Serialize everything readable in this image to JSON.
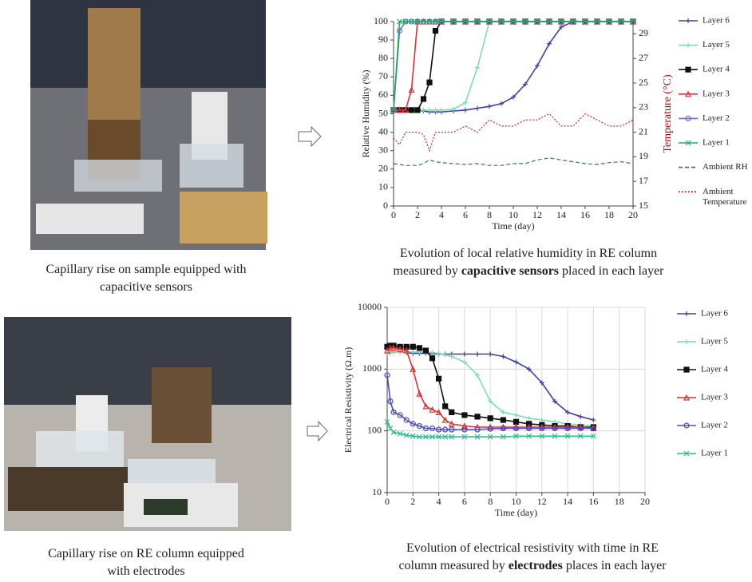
{
  "chart_data": [
    {
      "type": "line",
      "xlabel": "Time (day)",
      "ylabel": "Relative Humidity (%)",
      "y2label": "Temperature (°C)",
      "y2label_color": "#c00000",
      "x": [
        0,
        0.5,
        1,
        1.5,
        2,
        2.5,
        3,
        3.5,
        4,
        5,
        6,
        7,
        8,
        9,
        10,
        11,
        12,
        13,
        14,
        15,
        16,
        17,
        18,
        19,
        20
      ],
      "xlim": [
        0,
        20
      ],
      "xticks": [
        0,
        2,
        4,
        6,
        8,
        10,
        12,
        14,
        16,
        18,
        20
      ],
      "ylim": [
        0,
        100
      ],
      "yticks": [
        0,
        10,
        20,
        30,
        40,
        50,
        60,
        70,
        80,
        90,
        100
      ],
      "y2lim": [
        15,
        30
      ],
      "y2ticks": [
        15,
        17,
        19,
        21,
        23,
        25,
        27,
        29
      ],
      "grid": false,
      "legend": "right",
      "series": [
        {
          "name": "Layer 6",
          "color": "#3f3fa8",
          "marker": "plus",
          "line_style": "solid",
          "values": [
            52,
            52,
            52,
            52,
            52,
            51.5,
            51,
            51,
            51,
            51.5,
            52,
            53,
            54,
            55.5,
            59,
            66,
            76,
            88,
            97,
            100,
            100,
            100,
            100,
            100,
            100
          ]
        },
        {
          "name": "Layer 5",
          "color": "#7fdcb0",
          "marker": "plus",
          "line_style": "solid",
          "values": [
            52,
            52,
            52,
            52,
            52,
            52,
            52,
            52,
            52,
            52.5,
            56,
            75,
            100,
            100,
            100,
            100,
            100,
            100,
            100,
            100,
            100,
            100,
            100,
            100,
            100
          ]
        },
        {
          "name": "Layer 4",
          "color": "#111111",
          "marker": "square",
          "line_style": "solid",
          "values": [
            52,
            52,
            52,
            52,
            52,
            58,
            67,
            95,
            100,
            100,
            100,
            100,
            100,
            100,
            100,
            100,
            100,
            100,
            100,
            100,
            100,
            100,
            100,
            100,
            100
          ]
        },
        {
          "name": "Layer 3",
          "color": "#e03030",
          "marker": "triangle",
          "line_style": "solid",
          "values": [
            52,
            52,
            52,
            63,
            100,
            100,
            100,
            100,
            100,
            100,
            100,
            100,
            100,
            100,
            100,
            100,
            100,
            100,
            100,
            100,
            100,
            100,
            100,
            100,
            100
          ]
        },
        {
          "name": "Layer 2",
          "color": "#6b6bd0",
          "marker": "circle",
          "line_style": "solid",
          "values": [
            52,
            95,
            100,
            100,
            100,
            100,
            100,
            100,
            100,
            100,
            100,
            100,
            100,
            100,
            100,
            100,
            100,
            100,
            100,
            100,
            100,
            100,
            100,
            100,
            100
          ]
        },
        {
          "name": "Layer 1",
          "color": "#20b060",
          "marker": "x",
          "line_style": "solid",
          "values": [
            52,
            100,
            100,
            100,
            100,
            100,
            100,
            100,
            100,
            100,
            100,
            100,
            100,
            100,
            100,
            100,
            100,
            100,
            100,
            100,
            100,
            100,
            100,
            100,
            100
          ]
        },
        {
          "name": "Ambient RH",
          "color": "#2e7d4f",
          "marker": "none",
          "line_style": "dashed",
          "values": [
            23,
            22.5,
            22,
            22,
            22,
            23,
            25,
            24,
            23.5,
            23,
            22.5,
            23,
            22,
            22,
            23,
            23,
            25,
            26,
            25,
            24,
            23,
            22.5,
            23.5,
            24,
            23
          ]
        },
        {
          "name": "Ambient Temperature",
          "color": "#d02020",
          "marker": "none",
          "line_style": "dotted",
          "axis": "y2",
          "values": [
            20.5,
            20,
            21,
            21,
            21,
            20.8,
            19.5,
            21,
            21,
            21,
            21.5,
            21,
            22,
            21.5,
            21.5,
            22,
            22,
            22.5,
            21.5,
            21.5,
            22.5,
            22,
            21.5,
            21.5,
            22
          ]
        }
      ]
    },
    {
      "type": "line",
      "xlabel": "Time (day)",
      "ylabel": "Electrical Resistivity (Ω.m)",
      "x": [
        0,
        0.25,
        0.5,
        1,
        1.5,
        2,
        2.5,
        3,
        3.5,
        4,
        4.5,
        5,
        6,
        7,
        8,
        9,
        10,
        11,
        12,
        13,
        14,
        15,
        16
      ],
      "xlim": [
        0,
        20
      ],
      "xticks": [
        0,
        2,
        4,
        6,
        8,
        10,
        12,
        14,
        16,
        18,
        20
      ],
      "ylim": [
        10,
        10000
      ],
      "yticks": [
        10,
        100,
        1000,
        10000
      ],
      "log_y": true,
      "grid": true,
      "legend": "right",
      "series": [
        {
          "name": "Layer 6",
          "color": "#3f3fa8",
          "marker": "plus",
          "line_style": "solid",
          "values": [
            1800,
            1850,
            1900,
            1900,
            1850,
            1800,
            1800,
            1800,
            1780,
            1750,
            1750,
            1750,
            1750,
            1750,
            1750,
            1600,
            1300,
            1000,
            600,
            300,
            200,
            170,
            150
          ]
        },
        {
          "name": "Layer 5",
          "color": "#7fdcb0",
          "marker": "plus",
          "line_style": "solid",
          "values": [
            1800,
            1850,
            1900,
            1900,
            1900,
            1900,
            1900,
            1900,
            1850,
            1800,
            1700,
            1600,
            1300,
            800,
            300,
            200,
            180,
            160,
            150,
            140,
            130,
            125,
            120
          ]
        },
        {
          "name": "Layer 4",
          "color": "#111111",
          "marker": "square",
          "line_style": "solid",
          "values": [
            2300,
            2400,
            2400,
            2300,
            2300,
            2300,
            2200,
            2000,
            1500,
            700,
            250,
            200,
            180,
            170,
            160,
            150,
            140,
            130,
            125,
            120,
            120,
            115,
            115
          ]
        },
        {
          "name": "Layer 3",
          "color": "#e03030",
          "marker": "triangle",
          "line_style": "solid",
          "values": [
            2000,
            2200,
            2200,
            2100,
            2000,
            1000,
            400,
            250,
            220,
            200,
            150,
            130,
            120,
            115,
            115,
            115,
            115,
            115,
            115,
            115,
            115,
            115,
            110
          ]
        },
        {
          "name": "Layer 2",
          "color": "#4a4ac0",
          "marker": "circle",
          "line_style": "solid",
          "values": [
            800,
            300,
            200,
            180,
            150,
            130,
            120,
            110,
            110,
            105,
            105,
            105,
            105,
            105,
            108,
            110,
            110,
            110,
            110,
            110,
            110,
            110,
            110
          ]
        },
        {
          "name": "Layer 1",
          "color": "#2ac08a",
          "marker": "x",
          "line_style": "solid",
          "values": [
            140,
            110,
            95,
            90,
            85,
            82,
            80,
            80,
            80,
            80,
            80,
            80,
            80,
            80,
            80,
            80,
            82,
            82,
            82,
            82,
            82,
            82,
            82
          ]
        }
      ]
    }
  ],
  "captions": [
    {
      "lines": [
        [
          "Capillary rise on sample equipped with"
        ],
        [
          "capacitive sensors"
        ]
      ]
    },
    {
      "lines": [
        [
          "Evolution of local relative humidity in RE column"
        ],
        [
          "measured by ",
          {
            "text": "capacitive sensors",
            "bold": true
          },
          " placed in each layer"
        ]
      ]
    },
    {
      "lines": [
        [
          "Capillary rise on RE column equipped"
        ],
        [
          "with electrodes"
        ]
      ]
    },
    {
      "lines": [
        [
          "Evolution of electrical resistivity with time in RE"
        ],
        [
          "column measured by ",
          {
            "text": "electrodes",
            "bold": true
          },
          " places in each layer"
        ]
      ]
    }
  ]
}
